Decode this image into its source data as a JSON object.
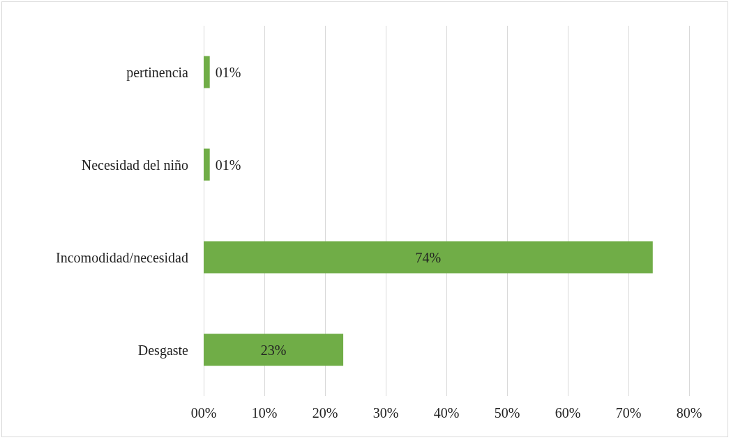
{
  "chart_data": {
    "type": "bar",
    "orientation": "horizontal",
    "categories": [
      "pertinencia",
      "Necesidad del niño",
      "Incomodidad/necesidad",
      "Desgaste"
    ],
    "values": [
      1,
      1,
      74,
      23
    ],
    "value_labels": [
      "01%",
      "01%",
      "74%",
      "23%"
    ],
    "color": "#70ad47",
    "xlim": [
      0,
      80
    ],
    "xticks": [
      {
        "value": 0,
        "label": "00%"
      },
      {
        "value": 10,
        "label": "10%"
      },
      {
        "value": 20,
        "label": "20%"
      },
      {
        "value": 30,
        "label": "30%"
      },
      {
        "value": 40,
        "label": "40%"
      },
      {
        "value": 50,
        "label": "50%"
      },
      {
        "value": 60,
        "label": "60%"
      },
      {
        "value": 70,
        "label": "70%"
      },
      {
        "value": 80,
        "label": "80%"
      }
    ],
    "grid": "x"
  }
}
